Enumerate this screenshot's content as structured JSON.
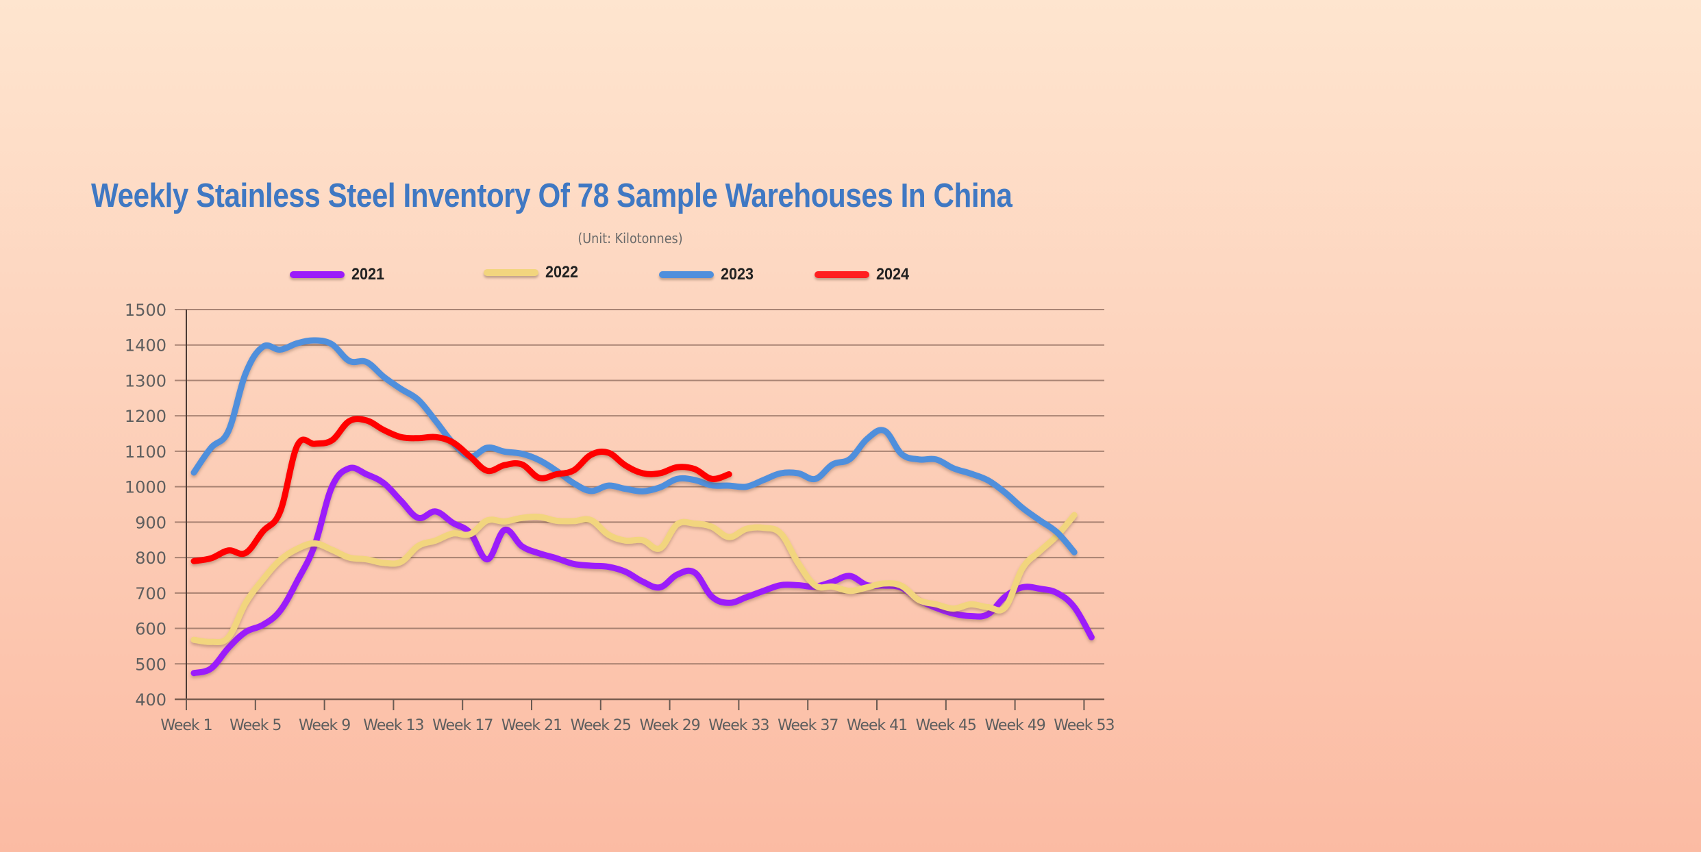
{
  "chart_data": {
    "type": "line",
    "title": "Weekly Stainless Steel Inventory Of 78 Sample Warehouses In China",
    "subtitle": "(Unit: Kilotonnes)",
    "xlabel": "",
    "ylabel": "",
    "ylim": [
      400,
      1500
    ],
    "yticks": [
      400,
      500,
      600,
      700,
      800,
      900,
      1000,
      1100,
      1200,
      1300,
      1400,
      1500
    ],
    "xlim_weeks": [
      1,
      53
    ],
    "xtick_labels": [
      "Week 1",
      "Week 5",
      "Week 9",
      "Week 13",
      "Week 17",
      "Week 21",
      "Week 25",
      "Week 29",
      "Week 33",
      "Week 37",
      "Week 41",
      "Week 45",
      "Week 49",
      "Week 53"
    ],
    "xtick_weeks": [
      1,
      5,
      9,
      13,
      17,
      21,
      25,
      29,
      33,
      37,
      41,
      45,
      49,
      53
    ],
    "grid": "horizontal",
    "legend_position": "top-center",
    "series": [
      {
        "name": "2021",
        "color": "#9B1BFA",
        "values": [
          474,
          487,
          545,
          590,
          610,
          650,
          735,
          835,
          1000,
          1052,
          1035,
          1010,
          960,
          912,
          930,
          898,
          870,
          795,
          878,
          832,
          812,
          798,
          782,
          777,
          774,
          760,
          732,
          716,
          752,
          758,
          690,
          672,
          688,
          706,
          722,
          722,
          718,
          732,
          748,
          722,
          721,
          715,
          680,
          658,
          642,
          635,
          640,
          690,
          716,
          712,
          700,
          660,
          575
        ]
      },
      {
        "name": "2022",
        "color": "#F2D57E",
        "values": [
          568,
          562,
          575,
          672,
          738,
          793,
          825,
          840,
          822,
          800,
          795,
          785,
          788,
          833,
          848,
          868,
          866,
          905,
          902,
          912,
          915,
          904,
          903,
          906,
          865,
          848,
          849,
          826,
          894,
          896,
          887,
          858,
          881,
          884,
          868,
          785,
          721,
          718,
          706,
          716,
          727,
          720,
          680,
          668,
          656,
          668,
          660,
          660,
          770,
          818,
          862,
          920
        ]
      },
      {
        "name": "2023",
        "color": "#4F8FDC",
        "values": [
          1040,
          1110,
          1157,
          1320,
          1395,
          1387,
          1405,
          1413,
          1402,
          1355,
          1352,
          1310,
          1276,
          1245,
          1186,
          1124,
          1085,
          1110,
          1099,
          1093,
          1075,
          1045,
          1010,
          988,
          1003,
          994,
          987,
          998,
          1022,
          1019,
          1004,
          1003,
          1000,
          1019,
          1038,
          1038,
          1022,
          1063,
          1078,
          1135,
          1158,
          1092,
          1077,
          1077,
          1052,
          1037,
          1018,
          983,
          940,
          905,
          871,
          815
        ]
      },
      {
        "name": "2024",
        "color": "#FF0000",
        "values": [
          790,
          798,
          820,
          813,
          874,
          930,
          1117,
          1121,
          1131,
          1185,
          1187,
          1160,
          1140,
          1137,
          1140,
          1125,
          1085,
          1045,
          1061,
          1063,
          1025,
          1035,
          1046,
          1090,
          1096,
          1060,
          1038,
          1038,
          1055,
          1050,
          1022,
          1035
        ]
      }
    ]
  },
  "legend": [
    {
      "label": "2021",
      "color": "#9B1BFA"
    },
    {
      "label": "2022",
      "color": "#F2D57E"
    },
    {
      "label": "2023",
      "color": "#4F8FDC"
    },
    {
      "label": "2024",
      "color": "#FF2020"
    }
  ]
}
